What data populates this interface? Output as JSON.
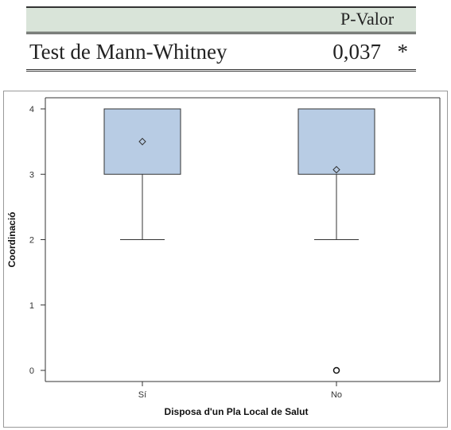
{
  "table": {
    "header": "P-Valor",
    "row": {
      "test": "Test de Mann-Whitney",
      "p_value": "0,037",
      "significance": "*"
    },
    "header_bg": "#d9e4d9"
  },
  "chart_data": {
    "type": "boxplot",
    "xlabel": "Disposa d'un Pla Local de Salut",
    "ylabel": "Coordinació",
    "ylim": [
      0,
      4
    ],
    "yticks": [
      0,
      1,
      2,
      3,
      4
    ],
    "categories": [
      "Sí",
      "No"
    ],
    "boxes": [
      {
        "category": "Sí",
        "whisker_low": 2,
        "q1": 3,
        "median": 4,
        "q3": 4,
        "whisker_high": 4,
        "mean": 3.5,
        "outliers": []
      },
      {
        "category": "No",
        "whisker_low": 2,
        "q1": 3,
        "median": 4,
        "q3": 4,
        "whisker_high": 4,
        "mean": 3.07,
        "outliers": [
          0
        ]
      }
    ],
    "grid": false,
    "box_fill": "#b8cce4",
    "box_stroke": "#333333"
  }
}
